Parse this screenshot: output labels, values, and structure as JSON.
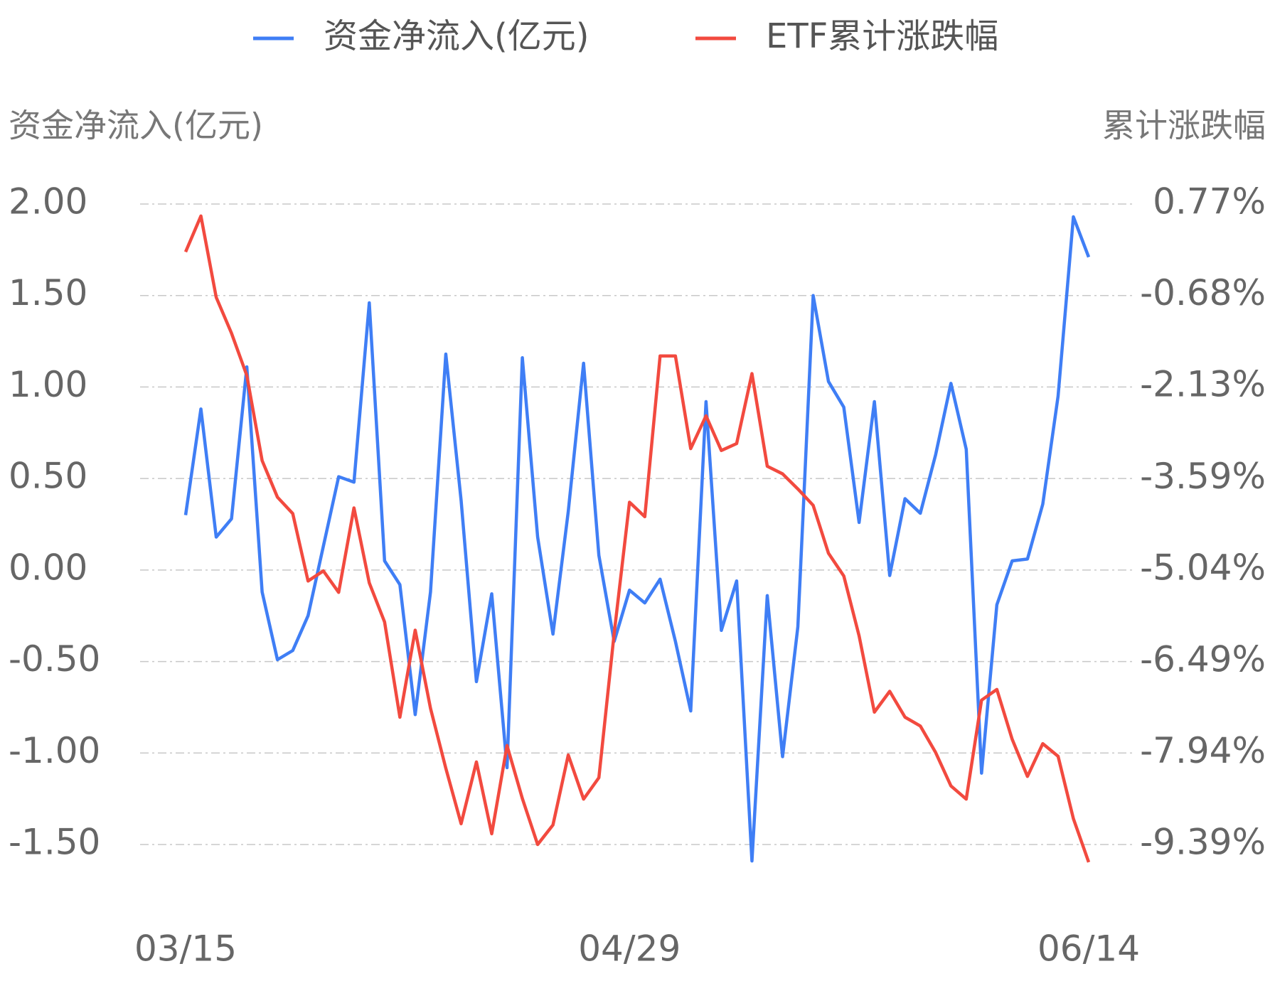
{
  "chart_data": {
    "type": "line",
    "ylabel": "资金净流入(亿元)",
    "y2label": "累计涨跌幅",
    "categories": [
      "03/15",
      null,
      null,
      null,
      null,
      null,
      null,
      null,
      null,
      null,
      null,
      null,
      null,
      null,
      null,
      null,
      null,
      null,
      null,
      null,
      null,
      null,
      null,
      null,
      null,
      null,
      null,
      null,
      null,
      "04/29",
      null,
      null,
      null,
      null,
      null,
      null,
      null,
      null,
      null,
      null,
      null,
      null,
      null,
      null,
      null,
      null,
      null,
      null,
      null,
      null,
      null,
      null,
      null,
      null,
      null,
      null,
      null,
      null,
      null,
      "06/14"
    ],
    "ylim": [
      -1.5,
      2
    ],
    "yticks": [
      {
        "value": 2,
        "label": "2.00"
      },
      {
        "value": 1.5,
        "label": "1.50"
      },
      {
        "value": 1,
        "label": "1.00"
      },
      {
        "value": 0.5,
        "label": "0.50"
      },
      {
        "value": 0,
        "label": "0.00"
      },
      {
        "value": -0.5,
        "label": "-0.50"
      },
      {
        "value": -1,
        "label": "-1.00"
      },
      {
        "value": -1.5,
        "label": "-1.50"
      }
    ],
    "y2lim": [
      -9.39,
      0.77
    ],
    "y2ticks": [
      {
        "value": 0.77,
        "label": "0.77%"
      },
      {
        "value": -0.68,
        "label": "-0.68%"
      },
      {
        "value": -2.13,
        "label": "-2.13%"
      },
      {
        "value": -3.59,
        "label": "-3.59%"
      },
      {
        "value": -5.04,
        "label": "-5.04%"
      },
      {
        "value": -6.49,
        "label": "-6.49%"
      },
      {
        "value": -7.94,
        "label": "-7.94%"
      },
      {
        "value": -9.39,
        "label": "-9.39%"
      }
    ],
    "grid": true,
    "legend": "top",
    "series": [
      {
        "name": "资金净流入(亿元)",
        "color": "#3f7ef5",
        "axis": "y",
        "values": [
          0.3,
          0.88,
          0.18,
          0.28,
          1.11,
          -0.12,
          -0.49,
          -0.44,
          -0.25,
          0.13,
          0.51,
          0.48,
          1.46,
          0.05,
          -0.08,
          -0.79,
          -0.12,
          1.18,
          0.38,
          -0.61,
          -0.13,
          -1.08,
          1.16,
          0.18,
          -0.35,
          0.32,
          1.13,
          0.08,
          -0.39,
          -0.11,
          -0.18,
          -0.05,
          -0.39,
          -0.77,
          0.92,
          -0.33,
          -0.06,
          -1.59,
          -0.14,
          -1.02,
          -0.31,
          1.5,
          1.03,
          0.89,
          0.26,
          0.92,
          -0.03,
          0.39,
          0.31,
          0.63,
          1.02,
          0.66,
          -1.11,
          -0.19,
          0.05,
          0.06,
          0.36,
          0.95,
          1.93,
          1.71
        ]
      },
      {
        "name": "ETF累计涨跌幅",
        "color": "#f24a3f",
        "axis": "y2",
        "values": [
          0.01,
          0.58,
          -0.71,
          -1.28,
          -1.95,
          -3.3,
          -3.88,
          -4.14,
          -5.21,
          -5.05,
          -5.39,
          -4.05,
          -5.24,
          -5.86,
          -7.37,
          -5.99,
          -7.23,
          -8.18,
          -9.06,
          -8.08,
          -9.22,
          -7.82,
          -8.66,
          -9.39,
          -9.08,
          -7.97,
          -8.67,
          -8.33,
          -6.04,
          -3.96,
          -4.19,
          -1.64,
          -1.64,
          -3.11,
          -2.59,
          -3.14,
          -3.03,
          -1.92,
          -3.39,
          -3.51,
          -3.75,
          -4.01,
          -4.77,
          -5.13,
          -6.08,
          -7.29,
          -6.96,
          -7.37,
          -7.51,
          -7.93,
          -8.46,
          -8.67,
          -7.1,
          -6.93,
          -7.72,
          -8.31,
          -7.79,
          -7.99,
          -8.98,
          -9.67
        ]
      }
    ]
  }
}
